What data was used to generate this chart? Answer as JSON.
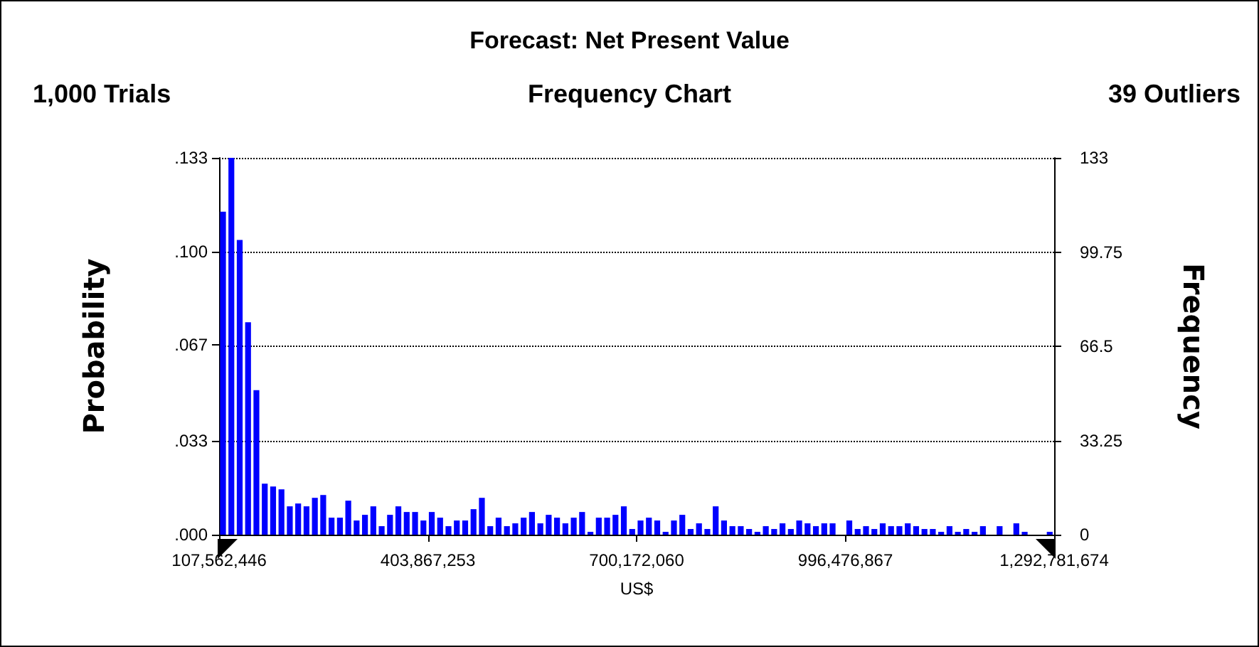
{
  "chart_data": {
    "type": "histogram",
    "title": "Forecast: Net Present Value",
    "subtitle": "Frequency Chart",
    "annotations": [
      "1,000 Trials",
      "39 Outliers"
    ],
    "xlabel": "US$",
    "ylabel": "Probability",
    "y2label": "Frequency",
    "bins": [
      107562446,
      119414638,
      131266831,
      143119023,
      154971215,
      166823407,
      178675600,
      190527792,
      202379984,
      214232177,
      226084369,
      237936561,
      249788753,
      261640946,
      273493138,
      285345330,
      297197522,
      309049715,
      320901907,
      332754099,
      344606292,
      356458484,
      368310676,
      380162868,
      392015061,
      403867253,
      415719445,
      427571638,
      439423830,
      451276022,
      463128214,
      474980407,
      486832599,
      498684791,
      510536984,
      522389176,
      534241368,
      546093560,
      557945753,
      569797945,
      581650137,
      593502329,
      605354522,
      617206714,
      629058906,
      640911099,
      652763291,
      664615483,
      676467675,
      688319868,
      700172060,
      712024252,
      723876445,
      735728637,
      747580829,
      759433021,
      771285214,
      783137406,
      794989598,
      806841791,
      818693983,
      830546175,
      842398367,
      854250560,
      866102752,
      877954944,
      889807136,
      901659329,
      913511521,
      925363713,
      937215906,
      949068098,
      960920290,
      972772482,
      984624675,
      996476867,
      1008329059,
      1020181252,
      1032033444,
      1043885636,
      1055737828,
      1067590021,
      1079442213,
      1091294405,
      1103146598,
      1114998790,
      1126850982,
      1138703174,
      1150555367,
      1162407559,
      1174259751,
      1186111943,
      1197964136,
      1209816328,
      1221668520,
      1233520713,
      1245372905,
      1257225097,
      1269077289,
      1280929482,
      1292781674
    ],
    "series": [
      {
        "axis": "y2",
        "color": "#0000ff",
        "values": [
          114,
          133,
          104,
          75,
          51,
          18,
          17,
          16,
          10,
          11,
          10,
          13,
          14,
          6,
          6,
          12,
          5,
          7,
          10,
          3,
          7,
          10,
          8,
          8,
          5,
          8,
          6,
          3,
          5,
          5,
          9,
          13,
          3,
          6,
          3,
          4,
          6,
          8,
          4,
          7,
          6,
          4,
          6,
          8,
          1,
          6,
          6,
          7,
          10,
          2,
          5,
          6,
          5,
          1,
          5,
          7,
          2,
          4,
          2,
          10,
          5,
          3,
          3,
          2,
          1,
          3,
          2,
          4,
          2,
          5,
          4,
          3,
          4,
          4,
          0,
          5,
          2,
          3,
          2,
          4,
          3,
          3,
          4,
          3,
          2,
          2,
          1,
          3,
          1,
          2,
          1,
          3,
          0,
          3,
          0,
          4,
          1,
          0,
          0,
          1
        ]
      }
    ],
    "xlim": [
      107562446,
      1292781674
    ],
    "xticks": [
      {
        "value": 107562446,
        "label": "107,562,446"
      },
      {
        "value": 403867253,
        "label": "403,867,253"
      },
      {
        "value": 700172060,
        "label": "700,172,060"
      },
      {
        "value": 996476867,
        "label": "996,476,867"
      },
      {
        "value": 1292781674,
        "label": "1,292,781,674"
      }
    ],
    "ylim": [
      0,
      0.133
    ],
    "yticks": [
      {
        "value": 0,
        "label": ".000"
      },
      {
        "value": 0.033,
        "label": ".033"
      },
      {
        "value": 0.067,
        "label": ".067"
      },
      {
        "value": 0.1,
        "label": ".100"
      },
      {
        "value": 0.133,
        "label": ".133"
      }
    ],
    "y2lim": [
      0,
      133
    ],
    "y2ticks": [
      0,
      33.25,
      66.5,
      99.75,
      133
    ],
    "grid": "y"
  }
}
